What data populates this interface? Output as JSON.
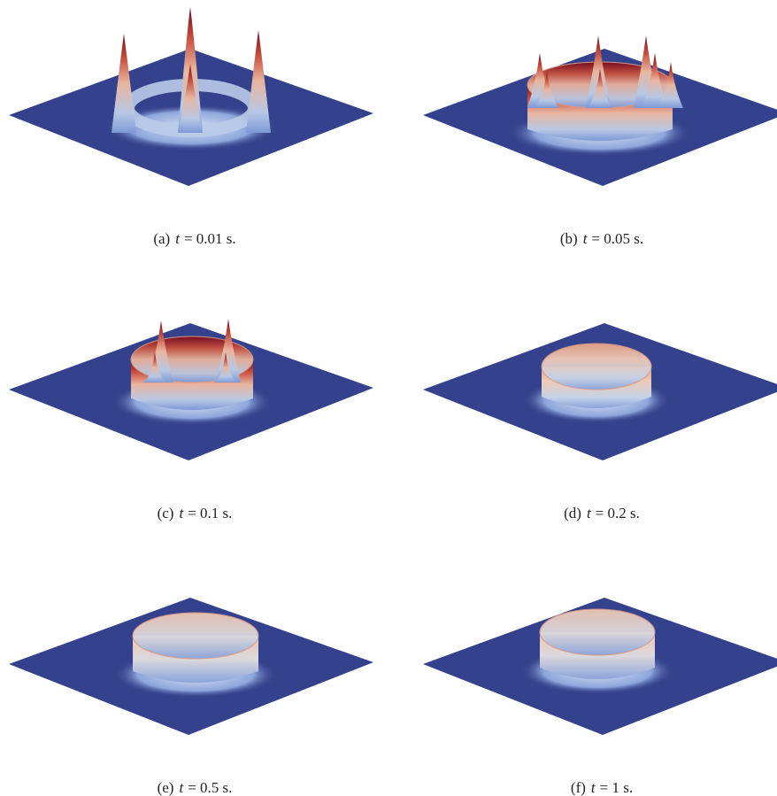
{
  "panels": [
    {
      "label": "(a)",
      "variable": "t",
      "text": "= 0.01 s."
    },
    {
      "label": "(b)",
      "variable": "t",
      "text": "= 0.05 s."
    },
    {
      "label": "(c)",
      "variable": "t",
      "text": "= 0.1 s."
    },
    {
      "label": "(d)",
      "variable": "t",
      "text": "= 0.2 s."
    },
    {
      "label": "(e)",
      "variable": "t",
      "text": "= 0.5 s."
    },
    {
      "label": "(f)",
      "variable": "t",
      "text": "= 1 s."
    }
  ]
}
